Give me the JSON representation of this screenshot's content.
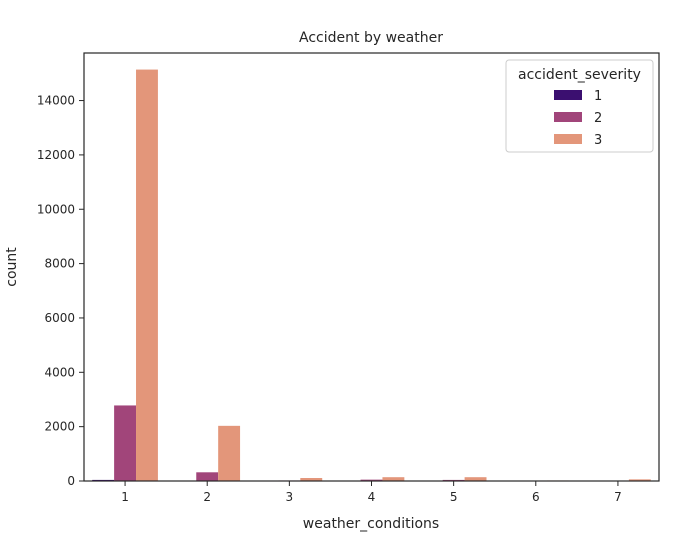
{
  "chart_data": {
    "type": "bar",
    "title": "Accident by weather",
    "xlabel": "weather_conditions",
    "ylabel": "count",
    "categories": [
      "1",
      "2",
      "3",
      "4",
      "5",
      "6",
      "7"
    ],
    "series": [
      {
        "name": "1",
        "color": "#3b0f70",
        "values": [
          40,
          10,
          0,
          5,
          5,
          0,
          0
        ]
      },
      {
        "name": "2",
        "color": "#a1457a",
        "values": [
          2780,
          320,
          20,
          50,
          40,
          10,
          15
        ]
      },
      {
        "name": "3",
        "color": "#e3967a",
        "values": [
          15140,
          2030,
          110,
          140,
          140,
          20,
          60
        ]
      }
    ],
    "ylim": [
      0,
      15750
    ],
    "yticks": [
      0,
      2000,
      4000,
      6000,
      8000,
      10000,
      12000,
      14000
    ],
    "ytick_labels": [
      "0",
      "2000",
      "4000",
      "6000",
      "8000",
      "10000",
      "12000",
      "14000"
    ],
    "legend": {
      "title": "accident_severity",
      "position": "top-right"
    },
    "grid": false
  }
}
